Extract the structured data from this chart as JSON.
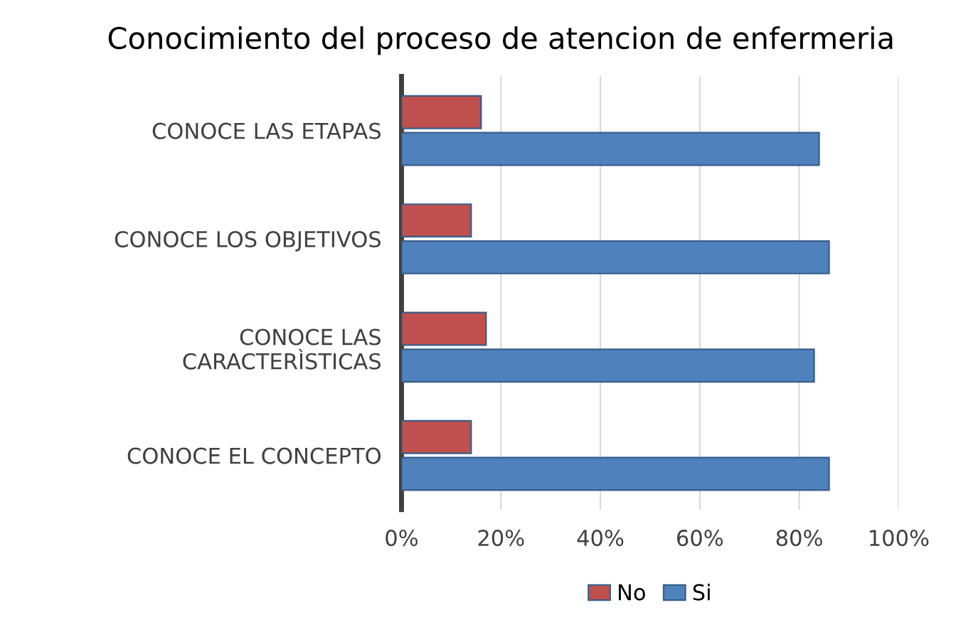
{
  "chart_data": {
    "type": "bar",
    "orientation": "horizontal",
    "title": "Conocimiento del proceso de atencion de enfermeria",
    "categories": [
      "CONOCE LAS ETAPAS",
      "CONOCE LOS OBJETIVOS",
      "CONOCE LAS\nCARACTERÌSTICAS",
      "CONOCE EL CONCEPTO"
    ],
    "series": [
      {
        "name": "No",
        "color": "#c0504d",
        "values": [
          16,
          14,
          17,
          14
        ]
      },
      {
        "name": "Si",
        "color": "#4f81bd",
        "values": [
          84,
          86,
          83,
          86
        ]
      }
    ],
    "xlim": [
      0,
      100
    ],
    "xticks": [
      {
        "value": 0,
        "label": "0%"
      },
      {
        "value": 20,
        "label": "20%"
      },
      {
        "value": 40,
        "label": "40%"
      },
      {
        "value": 60,
        "label": "60%"
      },
      {
        "value": 80,
        "label": "80%"
      },
      {
        "value": 100,
        "label": "100%"
      }
    ],
    "grid": "x",
    "legend": "bottom"
  }
}
